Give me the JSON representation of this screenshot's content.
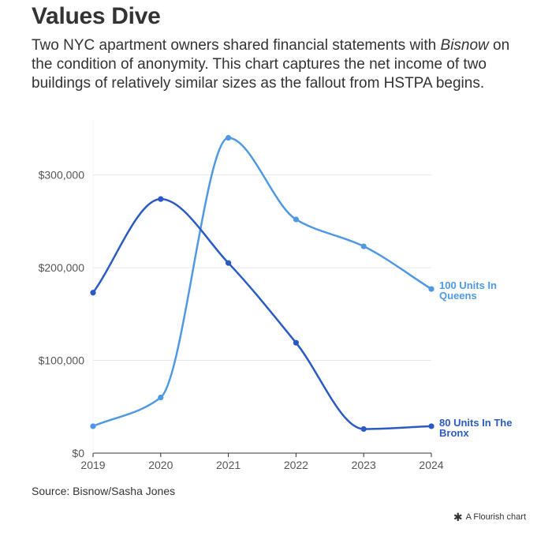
{
  "header": {
    "title": "Values Dive",
    "subtitle_before": "Two NYC apartment owners shared financial statements with ",
    "subtitle_em": "Bisnow",
    "subtitle_after": " on the condition of anonymity. This chart captures the net income of two buildings of relatively similar sizes as the fallout from HSTPA begins."
  },
  "footer": {
    "source": "Source: Bisnow/Sasha Jones",
    "credit": "A Flourish chart",
    "credit_icon": "asterisk-icon"
  },
  "chart_data": {
    "type": "line",
    "title": "Values Dive",
    "x": [
      "2019",
      "2020",
      "2021",
      "2022",
      "2023",
      "2024"
    ],
    "ylim": [
      0,
      350000
    ],
    "yticks": [
      {
        "value": 0,
        "label": "$0"
      },
      {
        "value": 100000,
        "label": "$100,000"
      },
      {
        "value": 200000,
        "label": "$200,000"
      },
      {
        "value": 300000,
        "label": "$300,000"
      }
    ],
    "grid": true,
    "legend": "inline-right",
    "series": [
      {
        "name": "100 Units In Queens",
        "label_lines": [
          "100 Units In",
          "Queens"
        ],
        "color": "#4f98e3",
        "values": [
          29000,
          60000,
          340000,
          252000,
          223000,
          177000
        ]
      },
      {
        "name": "80 Units In The Bronx",
        "label_lines": [
          "80 Units In The",
          "Bronx"
        ],
        "color": "#2a5bc4",
        "values": [
          173000,
          274000,
          205000,
          119000,
          26000,
          29000
        ]
      }
    ]
  }
}
